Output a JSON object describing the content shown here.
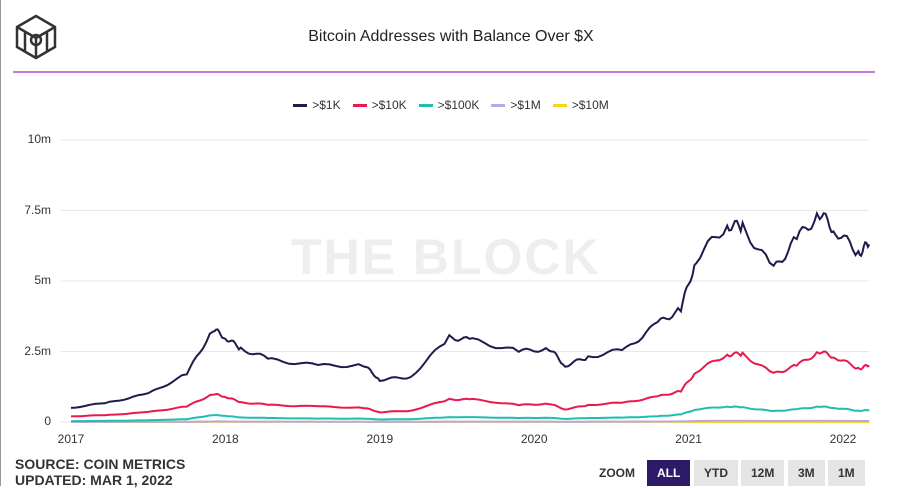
{
  "chart_data": {
    "type": "line",
    "title": "Bitcoin Addresses with Balance Over $X",
    "xlabel": "",
    "ylabel": "",
    "ylim": [
      0,
      10000000
    ],
    "yticks": [
      "0",
      "2.5m",
      "5m",
      "7.5m",
      "10m"
    ],
    "xticks": [
      "2017",
      "2018",
      "2019",
      "2020",
      "2021",
      "2022"
    ],
    "xlim": [
      2017,
      2022.17
    ],
    "watermark": "THE BLOCK",
    "legend_position": "top-center",
    "x": [
      2017.0,
      2017.25,
      2017.5,
      2017.75,
      2017.92,
      2018.0,
      2018.1,
      2018.3,
      2018.6,
      2018.9,
      2019.0,
      2019.2,
      2019.45,
      2019.6,
      2019.9,
      2020.1,
      2020.2,
      2020.35,
      2020.6,
      2020.8,
      2020.95,
      2021.05,
      2021.25,
      2021.35,
      2021.55,
      2021.7,
      2021.85,
      2021.95,
      2022.1,
      2022.17
    ],
    "series": [
      {
        "name": ">$1K",
        "color": "#1e1b4b",
        "values": [
          0.5,
          0.7,
          1.0,
          1.7,
          3.3,
          3.0,
          2.6,
          2.2,
          2.0,
          2.0,
          1.5,
          1.6,
          3.0,
          2.9,
          2.5,
          2.6,
          2.0,
          2.3,
          2.6,
          3.5,
          4.0,
          5.8,
          7.0,
          6.9,
          5.4,
          6.5,
          7.4,
          6.8,
          6.0,
          6.3
        ]
      },
      {
        "name": ">$10K",
        "color": "#e8194f",
        "values": [
          0.2,
          0.25,
          0.35,
          0.55,
          1.0,
          0.9,
          0.7,
          0.6,
          0.55,
          0.5,
          0.35,
          0.4,
          0.8,
          0.8,
          0.6,
          0.65,
          0.45,
          0.6,
          0.7,
          0.9,
          1.1,
          1.8,
          2.4,
          2.4,
          1.7,
          2.0,
          2.5,
          2.3,
          1.9,
          2.0
        ]
      },
      {
        "name": ">$100K",
        "color": "#1fbfae",
        "values": [
          0.03,
          0.04,
          0.06,
          0.1,
          0.25,
          0.22,
          0.16,
          0.14,
          0.12,
          0.12,
          0.09,
          0.1,
          0.17,
          0.17,
          0.14,
          0.15,
          0.11,
          0.14,
          0.16,
          0.2,
          0.27,
          0.45,
          0.55,
          0.52,
          0.38,
          0.45,
          0.55,
          0.5,
          0.4,
          0.42
        ]
      },
      {
        "name": ">$1M",
        "color": "#b8a8e8",
        "values": [
          0.005,
          0.005,
          0.007,
          0.01,
          0.02,
          0.02,
          0.015,
          0.013,
          0.012,
          0.012,
          0.01,
          0.01,
          0.015,
          0.015,
          0.013,
          0.014,
          0.011,
          0.013,
          0.015,
          0.018,
          0.022,
          0.035,
          0.045,
          0.043,
          0.033,
          0.038,
          0.045,
          0.04,
          0.035,
          0.036
        ]
      },
      {
        "name": ">$10M",
        "color": "#f5d41c",
        "values": [
          0.001,
          0.001,
          0.001,
          0.001,
          0.002,
          0.002,
          0.002,
          0.002,
          0.002,
          0.002,
          0.001,
          0.001,
          0.002,
          0.002,
          0.002,
          0.002,
          0.001,
          0.002,
          0.002,
          0.002,
          0.003,
          0.004,
          0.005,
          0.005,
          0.004,
          0.004,
          0.005,
          0.005,
          0.004,
          0.004
        ]
      }
    ],
    "value_unit": "millions"
  },
  "footer": {
    "source": "SOURCE: COIN METRICS",
    "updated": "UPDATED: MAR 1, 2022"
  },
  "zoom": {
    "label": "ZOOM",
    "buttons": [
      "ALL",
      "YTD",
      "12M",
      "3M",
      "1M"
    ],
    "active": "ALL",
    "active_color": "#2d1b69"
  }
}
